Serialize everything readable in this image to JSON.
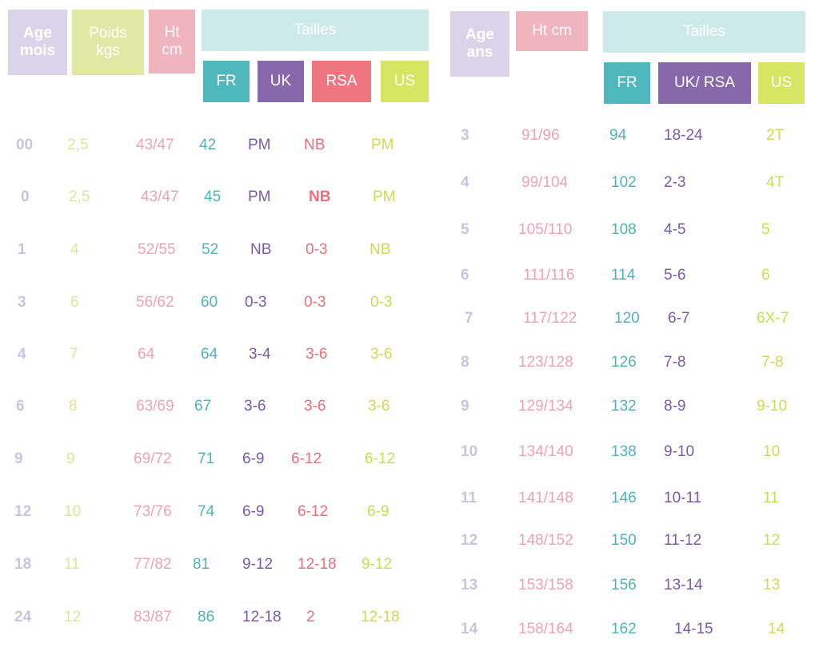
{
  "colors": {
    "age_header": "#d9d4ea",
    "poids_header": "#e1e8a4",
    "ht_header": "#efb4bd",
    "tailles_header": "#cdeaea",
    "fr": "#4fb8bd",
    "uk": "#8768aa",
    "rsa": "#ef7580",
    "us": "#d6e562"
  },
  "left": {
    "headers": {
      "age": "Age\nmois",
      "poids": "Poids\nkgs",
      "ht": "Ht\ncm",
      "tailles": "Tailles",
      "fr": "FR",
      "uk": "UK",
      "rsa": "RSA",
      "us": "US"
    },
    "rows": [
      {
        "age": "00",
        "kg": "2,5",
        "ht": "43/47",
        "fr": "42",
        "uk": "PM",
        "rsa": "NB",
        "us": "PM"
      },
      {
        "age": "0",
        "kg": "2,5",
        "ht": "43/47",
        "fr": "45",
        "uk": "PM",
        "rsa": "NB",
        "us": "PM"
      },
      {
        "age": "1",
        "kg": "4",
        "ht": "52/55",
        "fr": "52",
        "uk": "NB",
        "rsa": "0-3",
        "us": "NB"
      },
      {
        "age": "3",
        "kg": "6",
        "ht": "56/62",
        "fr": "60",
        "uk": "0-3",
        "rsa": "0-3",
        "us": "0-3"
      },
      {
        "age": "4",
        "kg": "7",
        "ht": "64",
        "fr": "64",
        "uk": "3-4",
        "rsa": "3-6",
        "us": "3-6"
      },
      {
        "age": "6",
        "kg": "8",
        "ht": "63/69",
        "fr": "67",
        "uk": "3-6",
        "rsa": "3-6",
        "us": "3-6"
      },
      {
        "age": "9",
        "kg": "9",
        "ht": "69/72",
        "fr": "71",
        "uk": "6-9",
        "rsa": "6-12",
        "us": "6-12"
      },
      {
        "age": "12",
        "kg": "10",
        "ht": "73/76",
        "fr": "74",
        "uk": "6-9",
        "rsa": "6-12",
        "us": "6-9"
      },
      {
        "age": "18",
        "kg": "11",
        "ht": "77/82",
        "fr": "81",
        "uk": "9-12",
        "rsa": "12-18",
        "us": "9-12"
      },
      {
        "age": "24",
        "kg": "12",
        "ht": "83/87",
        "fr": "86",
        "uk": "12-18",
        "rsa": "2",
        "us": "12-18"
      }
    ]
  },
  "right": {
    "headers": {
      "age": "Age\nans",
      "ht": "Ht cm",
      "tailles": "Tailles",
      "fr": "FR",
      "uk_rsa": "UK/ RSA",
      "us": "US"
    },
    "rows": [
      {
        "age": "3",
        "ht": "91/96",
        "fr": "94",
        "uk": "18-24",
        "us": "2T"
      },
      {
        "age": "4",
        "ht": "99/104",
        "fr": "102",
        "uk": "2-3",
        "us": "4T"
      },
      {
        "age": "5",
        "ht": "105/110",
        "fr": "108",
        "uk": "4-5",
        "us": "5"
      },
      {
        "age": "6",
        "ht": "111/116",
        "fr": "114",
        "uk": "5-6",
        "us": "6"
      },
      {
        "age": "7",
        "ht": "117/122",
        "fr": "120",
        "uk": "6-7",
        "us": "6X-7"
      },
      {
        "age": "8",
        "ht": "123/128",
        "fr": "126",
        "uk": "7-8",
        "us": "7-8"
      },
      {
        "age": "9",
        "ht": "129/134",
        "fr": "132",
        "uk": "8-9",
        "us": "9-10"
      },
      {
        "age": "10",
        "ht": "134/140",
        "fr": "138",
        "uk": "9-10",
        "us": "10"
      },
      {
        "age": "11",
        "ht": "141/148",
        "fr": "146",
        "uk": "10-11",
        "us": "11"
      },
      {
        "age": "12",
        "ht": "148/152",
        "fr": "150",
        "uk": "11-12",
        "us": "12"
      },
      {
        "age": "13",
        "ht": "153/158",
        "fr": "156",
        "uk": "13-14",
        "us": "13"
      },
      {
        "age": "14",
        "ht": "158/164",
        "fr": "162",
        "uk": "14-15",
        "us": "14"
      }
    ]
  }
}
